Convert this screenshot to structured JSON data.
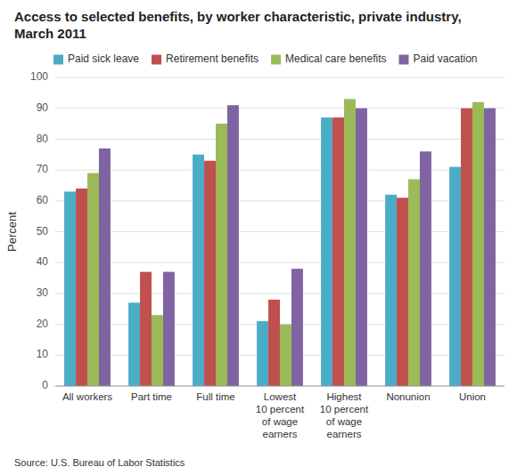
{
  "chart_data": {
    "type": "bar",
    "title": "Access to selected benefits, by worker characteristic, private industry, March 2011",
    "y_label": "Percent",
    "annotations": [
      "Source: U.S. Bureau of Labor Statistics"
    ],
    "categories": [
      "All workers",
      "Part time",
      "Full time",
      "Lowest\n10 percent\nof wage\nearners",
      "Highest\n10 percent\nof wage\nearners",
      "Nonunion",
      "Union"
    ],
    "series": [
      {
        "name": "Paid sick leave",
        "color": "#4bacc6",
        "values": [
          63,
          27,
          75,
          21,
          87,
          62,
          71
        ]
      },
      {
        "name": "Retirement benefits",
        "color": "#c0504d",
        "values": [
          64,
          37,
          73,
          28,
          87,
          61,
          90
        ]
      },
      {
        "name": "Medical care benefits",
        "color": "#9bbb59",
        "values": [
          69,
          23,
          85,
          20,
          93,
          67,
          92
        ]
      },
      {
        "name": "Paid vacation",
        "color": "#8064a2",
        "values": [
          77,
          37,
          91,
          38,
          90,
          76,
          90
        ]
      }
    ],
    "ylim": [
      0,
      100
    ],
    "yticks": [
      0,
      10,
      20,
      30,
      40,
      50,
      60,
      70,
      80,
      90,
      100
    ],
    "grid": true,
    "legend": "top"
  }
}
